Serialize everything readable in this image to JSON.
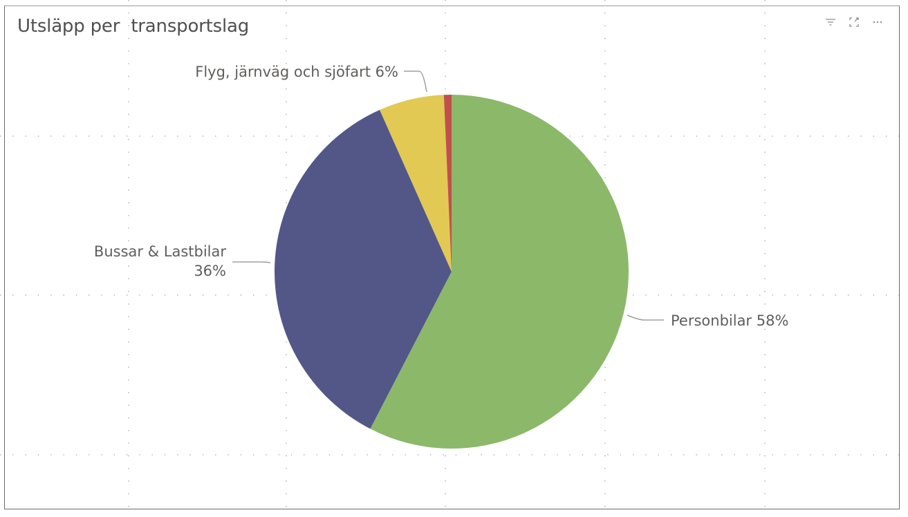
{
  "title": "Utsläpp per  transportslag",
  "header_icons": [
    "filter-icon",
    "focus-mode-icon",
    "more-options-icon"
  ],
  "chart_data": {
    "type": "pie",
    "title": "Utsläpp per  transportslag",
    "slices": [
      {
        "label": "Personbilar",
        "value": 58,
        "percent_label": "58%",
        "color": "#8cb86a"
      },
      {
        "label": "Bussar & Lastbilar",
        "value": 36,
        "percent_label": "36%",
        "color": "#525788"
      },
      {
        "label": "Flyg, järnväg och sjöfart",
        "value": 6,
        "percent_label": "6%",
        "color": "#e1c953"
      },
      {
        "label": "",
        "value": 0.7,
        "percent_label": "",
        "color": "#c1504c"
      }
    ],
    "data_labels": [
      {
        "lines": [
          "Personbilar 58%"
        ],
        "anchor": "start"
      },
      {
        "lines": [
          "Bussar & Lastbilar",
          "36%"
        ],
        "anchor": "end"
      },
      {
        "lines": [
          "Flyg, järnväg och sjöfart 6%"
        ],
        "anchor": "end"
      }
    ]
  }
}
